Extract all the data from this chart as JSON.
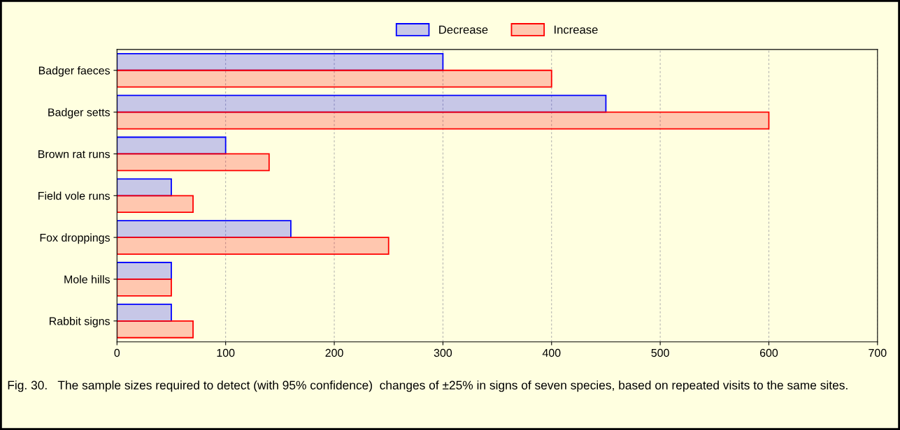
{
  "chart_data": {
    "type": "bar",
    "orientation": "horizontal",
    "categories": [
      "Badger faeces",
      "Badger setts",
      "Brown rat runs",
      "Field vole runs",
      "Fox droppings",
      "Mole hills",
      "Rabbit signs"
    ],
    "series": [
      {
        "name": "Decrease",
        "color": "#0000ff",
        "values": [
          300,
          450,
          100,
          50,
          160,
          50,
          50
        ]
      },
      {
        "name": "Increase",
        "color": "#ff0000",
        "values": [
          400,
          600,
          140,
          70,
          250,
          50,
          70
        ]
      }
    ],
    "xlim": [
      0,
      700
    ],
    "xticks": [
      0,
      100,
      200,
      300,
      400,
      500,
      600,
      700
    ],
    "grid": "x",
    "legend": "top",
    "annotations": [
      "Fig. 30.   The sample sizes required to detect (with 95% confidence)  changes of ±25% in signs of seven species, based on repeated visits to the same sites."
    ]
  }
}
